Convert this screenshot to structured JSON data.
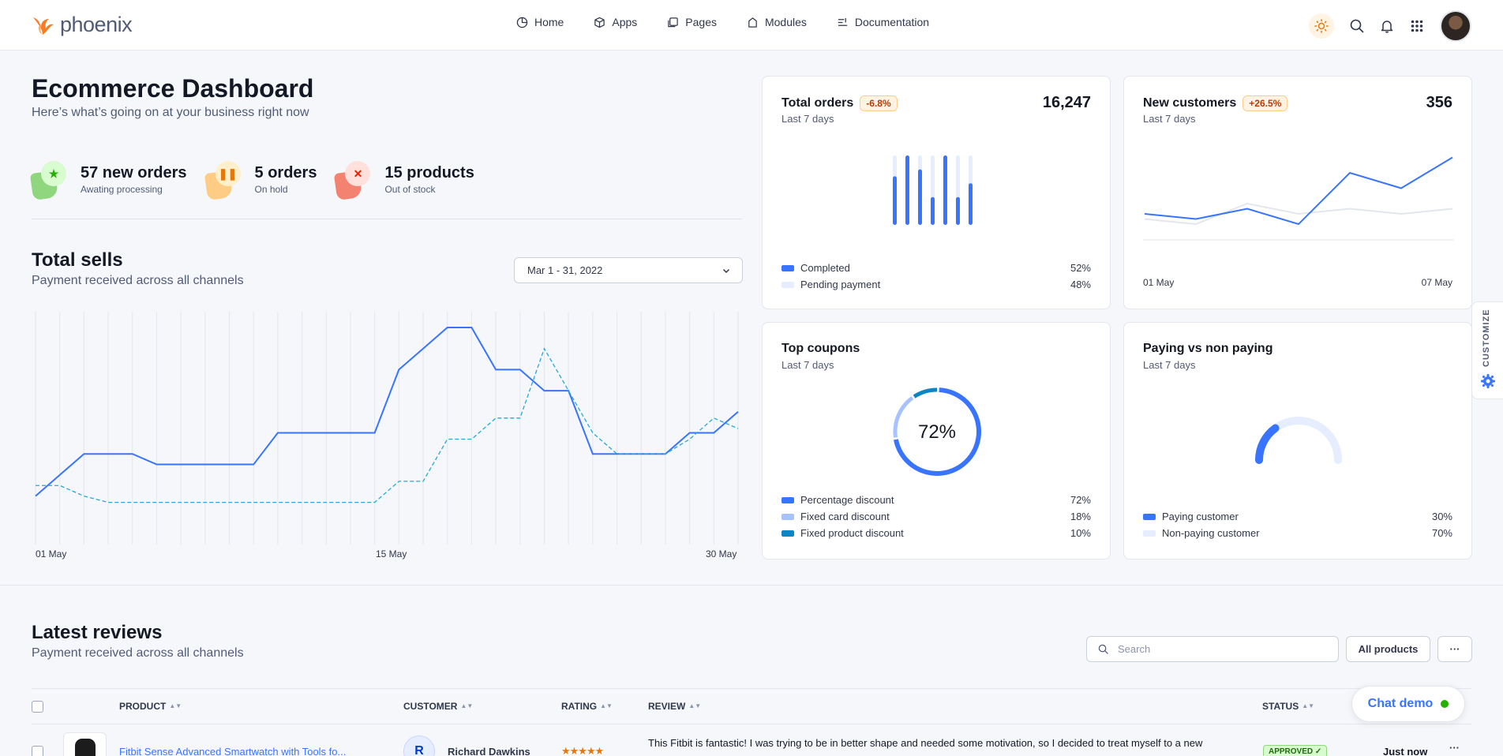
{
  "brand": {
    "name": "phoenix"
  },
  "nav": {
    "items": [
      {
        "label": "Home",
        "icon": "pie-chart-icon"
      },
      {
        "label": "Apps",
        "icon": "cube-icon"
      },
      {
        "label": "Pages",
        "icon": "files-icon"
      },
      {
        "label": "Modules",
        "icon": "modules-icon"
      },
      {
        "label": "Documentation",
        "icon": "doc-icon"
      }
    ]
  },
  "header": {
    "title": "Ecommerce Dashboard",
    "subtitle": "Here’s what’s going on at your business right now"
  },
  "stats": [
    {
      "value": "57 new orders",
      "label": "Awating processing",
      "icon": "star-icon",
      "color": "#25b003"
    },
    {
      "value": "5 orders",
      "label": "On hold",
      "icon": "pause-icon",
      "color": "#e5780b"
    },
    {
      "value": "15 products",
      "label": "Out of stock",
      "icon": "x-icon",
      "color": "#ec1f00"
    }
  ],
  "sells": {
    "title": "Total sells",
    "subtitle": "Payment received across all channels",
    "date_range": "Mar 1 - 31, 2022",
    "x_labels": [
      "01 May",
      "15 May",
      "30 May"
    ]
  },
  "chart_data": [
    {
      "type": "line",
      "x": [
        1,
        2,
        3,
        4,
        5,
        6,
        7,
        8,
        9,
        10,
        11,
        12,
        13,
        14,
        15,
        16,
        17,
        18,
        19,
        20,
        21,
        22,
        23,
        24,
        25,
        26,
        27,
        28,
        29,
        30
      ],
      "x_tick_labels": [
        "01 May",
        "15 May",
        "30 May"
      ],
      "series": [
        {
          "values": [
            20,
            30,
            40,
            40,
            40,
            35,
            35,
            35,
            35,
            35,
            50,
            50,
            50,
            50,
            50,
            80,
            90,
            100,
            100,
            80,
            80,
            70,
            70,
            40,
            40,
            40,
            40,
            50,
            50,
            60
          ]
        },
        {
          "values": [
            25,
            25,
            20,
            17,
            17,
            17,
            17,
            17,
            17,
            17,
            17,
            17,
            17,
            17,
            17,
            27,
            27,
            47,
            47,
            57,
            57,
            90,
            70,
            50,
            40,
            40,
            40,
            47,
            57,
            52
          ]
        }
      ],
      "grid": true
    },
    {
      "type": "bar",
      "title": "Total orders",
      "values": [
        70,
        100,
        80,
        40,
        100,
        40,
        60
      ],
      "series": [
        {
          "name": "Completed",
          "value": 52
        },
        {
          "name": "Pending payment",
          "value": 48
        }
      ]
    },
    {
      "type": "line",
      "title": "New customers",
      "x_tick_labels": [
        "01 May",
        "07 May"
      ],
      "series": [
        {
          "values": [
            20,
            15,
            25,
            10,
            60,
            45,
            75
          ]
        },
        {
          "values": [
            15,
            10,
            30,
            20,
            25,
            20,
            25
          ]
        }
      ]
    },
    {
      "type": "pie",
      "title": "Top coupons",
      "categories": [
        "Percentage discount",
        "Fixed card discount",
        "Fixed product discount"
      ],
      "values": [
        72,
        18,
        10
      ]
    },
    {
      "type": "pie",
      "title": "Paying vs non paying",
      "categories": [
        "Paying customer",
        "Non-paying customer"
      ],
      "values": [
        30,
        70
      ]
    }
  ],
  "cards": {
    "orders": {
      "title": "Total orders",
      "badge": "-6.8%",
      "period": "Last 7 days",
      "total": "16,247",
      "legend": [
        {
          "label": "Completed",
          "value": "52%",
          "color": "#3874ff"
        },
        {
          "label": "Pending payment",
          "value": "48%",
          "color": "#e5edff"
        }
      ]
    },
    "customers": {
      "title": "New customers",
      "badge": "+26.5%",
      "period": "Last 7 days",
      "total": "356",
      "x_start": "01 May",
      "x_end": "07 May"
    },
    "coupons": {
      "title": "Top coupons",
      "period": "Last 7 days",
      "center_label": "72%",
      "legend": [
        {
          "label": "Percentage discount",
          "value": "72%",
          "color": "#3874ff"
        },
        {
          "label": "Fixed card discount",
          "value": "18%",
          "color": "#a6c2ff"
        },
        {
          "label": "Fixed product discount",
          "value": "10%",
          "color": "#0d84c4"
        }
      ]
    },
    "paying": {
      "title": "Paying vs non paying",
      "period": "Last 7 days",
      "legend": [
        {
          "label": "Paying customer",
          "value": "30%",
          "color": "#3874ff"
        },
        {
          "label": "Non-paying customer",
          "value": "70%",
          "color": "#e5edff"
        }
      ]
    }
  },
  "customize": {
    "label": "CUSTOMIZE"
  },
  "reviews": {
    "title": "Latest reviews",
    "subtitle": "Payment received across all channels",
    "search_placeholder": "Search",
    "filter_label": "All products",
    "more_label": "···",
    "columns": [
      "PRODUCT",
      "CUSTOMER",
      "RATING",
      "REVIEW",
      "STATUS"
    ],
    "rows": [
      {
        "product": "Fitbit Sense Advanced Smartwatch with Tools fo...",
        "customer": "Richard Dawkins",
        "customer_initial": "R",
        "rating": 5,
        "rating_text": "★★★★★",
        "review": "This Fitbit is fantastic! I was trying to be in better shape and needed some motivation, so I decided to treat myself to a new",
        "status": "APPROVED ✓",
        "time": "Just now"
      }
    ]
  },
  "chat": {
    "label": "Chat demo"
  },
  "colors": {
    "primary": "#3874ff",
    "warning": "#e5780b",
    "success": "#25b003",
    "danger": "#ec1f00"
  }
}
